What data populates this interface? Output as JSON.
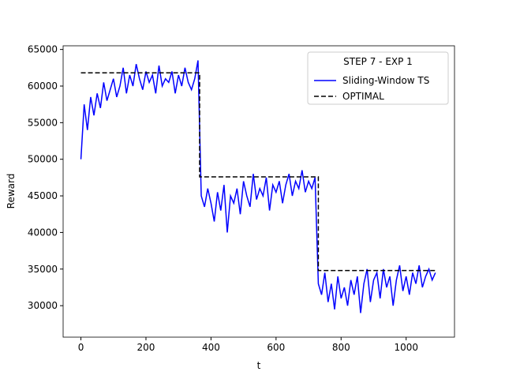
{
  "chart_data": {
    "type": "line",
    "xlabel": "t",
    "ylabel": "Reward",
    "legend_title": "STEP 7 - EXP 1",
    "legend": "upper right",
    "xlim": [
      -54.7,
      1148.7
    ],
    "xticks": [
      0,
      200,
      400,
      600,
      800,
      1000
    ],
    "ylim": [
      25700,
      65500
    ],
    "yticks": [
      30000,
      35000,
      40000,
      45000,
      50000,
      55000,
      60000,
      65000
    ],
    "series": [
      {
        "name": "Sliding-Window TS",
        "color": "#0000ff",
        "dash": "none",
        "x": [
          0,
          10,
          20,
          30,
          40,
          50,
          60,
          70,
          80,
          90,
          100,
          110,
          120,
          130,
          140,
          150,
          160,
          170,
          180,
          190,
          200,
          210,
          220,
          230,
          240,
          250,
          260,
          270,
          280,
          290,
          300,
          310,
          320,
          330,
          340,
          350,
          360,
          370,
          380,
          390,
          400,
          410,
          420,
          430,
          440,
          450,
          460,
          470,
          480,
          490,
          500,
          510,
          520,
          530,
          540,
          550,
          560,
          570,
          580,
          590,
          600,
          610,
          620,
          630,
          640,
          650,
          660,
          670,
          680,
          690,
          700,
          710,
          720,
          730,
          740,
          750,
          760,
          770,
          780,
          790,
          800,
          810,
          820,
          830,
          840,
          850,
          860,
          870,
          880,
          890,
          900,
          910,
          920,
          930,
          940,
          950,
          960,
          970,
          980,
          990,
          1000,
          1010,
          1020,
          1030,
          1040,
          1050,
          1060,
          1070,
          1080,
          1090
        ],
        "values": [
          50000,
          57500,
          54000,
          58500,
          56000,
          59000,
          57000,
          60500,
          58000,
          59500,
          61000,
          58500,
          60000,
          62500,
          59000,
          61500,
          60000,
          63000,
          61000,
          59500,
          62000,
          60500,
          61500,
          59000,
          62800,
          60000,
          61000,
          60500,
          62000,
          59000,
          61500,
          60000,
          62500,
          60500,
          59500,
          61000,
          63500,
          45000,
          43500,
          46000,
          44000,
          41500,
          45500,
          43000,
          46500,
          40000,
          45000,
          44000,
          46000,
          42500,
          47000,
          45000,
          43500,
          48000,
          44500,
          46000,
          45000,
          47500,
          43000,
          46500,
          45500,
          47000,
          44000,
          46500,
          48000,
          45000,
          47000,
          46000,
          48500,
          45500,
          47000,
          46000,
          47500,
          33000,
          31500,
          34500,
          30500,
          33000,
          29500,
          34000,
          31000,
          32500,
          30000,
          33500,
          31500,
          34000,
          29000,
          33000,
          35000,
          30500,
          33500,
          34500,
          31000,
          35000,
          32500,
          34000,
          30000,
          33500,
          35500,
          32000,
          34000,
          31500,
          34500,
          33000,
          35500,
          32500,
          34000,
          35000,
          33500,
          34500
        ]
      },
      {
        "name": "OPTIMAL",
        "color": "#000000",
        "dash": "6,3",
        "x": [
          0,
          365,
          365,
          730,
          730,
          1094
        ],
        "values": [
          61800,
          61800,
          47600,
          47600,
          34800,
          34800
        ]
      }
    ]
  }
}
